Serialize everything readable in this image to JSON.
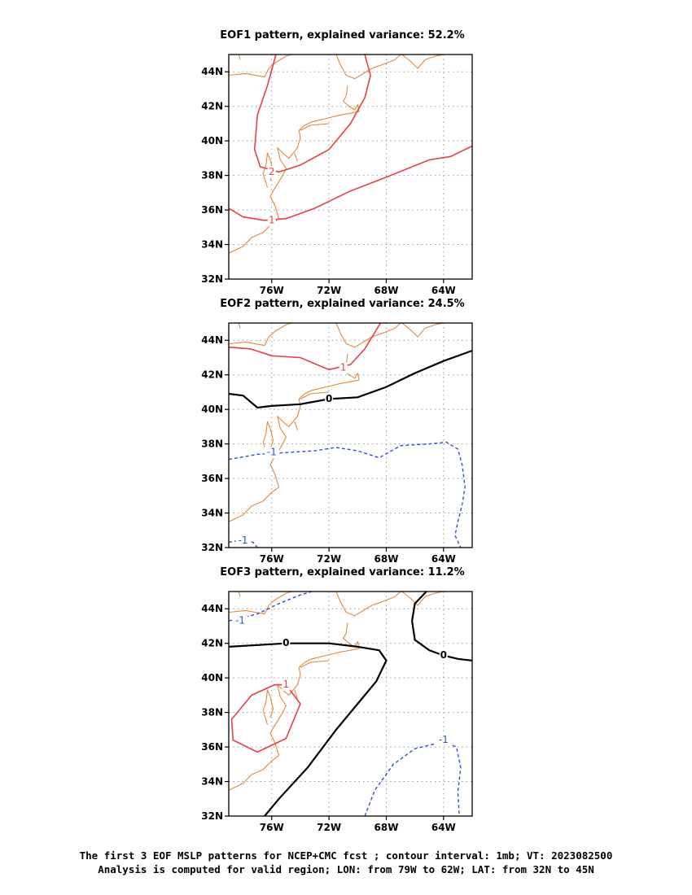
{
  "map": {
    "lon_range": [
      -79,
      -62
    ],
    "lat_range": [
      32,
      45
    ],
    "lon_ticks": [
      {
        "value": -76,
        "label": "76W"
      },
      {
        "value": -72,
        "label": "72W"
      },
      {
        "value": -68,
        "label": "68W"
      },
      {
        "value": -64,
        "label": "64W"
      }
    ],
    "lat_ticks": [
      {
        "value": 44,
        "label": "44N"
      },
      {
        "value": 42,
        "label": "42N"
      },
      {
        "value": 40,
        "label": "40N"
      },
      {
        "value": 38,
        "label": "38N"
      },
      {
        "value": 36,
        "label": "36N"
      },
      {
        "value": 34,
        "label": "34N"
      },
      {
        "value": 32,
        "label": "32N"
      }
    ],
    "colors": {
      "coastline": "#e08a3c",
      "positive": "#e84040",
      "zero": "#000000",
      "negative": "#2d4fe0",
      "grid": "#9a9a9a"
    }
  },
  "panels": [
    {
      "title": "EOF1 pattern, explained variance: 52.2%",
      "contours": [
        {
          "value": 2,
          "label": "2",
          "style": "positive",
          "label_at": [
            -76,
            38.2
          ],
          "points": [
            [
              -75.7,
              45
            ],
            [
              -76.3,
              43.2
            ],
            [
              -77,
              41.5
            ],
            [
              -77.2,
              39.5
            ],
            [
              -76.8,
              38.5
            ],
            [
              -75.5,
              38.2
            ],
            [
              -74,
              38.6
            ],
            [
              -72,
              39.5
            ],
            [
              -70.5,
              41
            ],
            [
              -69.5,
              42.5
            ],
            [
              -69.1,
              43.8
            ],
            [
              -69.5,
              45
            ]
          ]
        },
        {
          "value": 1,
          "label": "1",
          "style": "positive",
          "label_at": [
            -76,
            35.4
          ],
          "points": [
            [
              -79,
              36.1
            ],
            [
              -78,
              35.6
            ],
            [
              -76.5,
              35.4
            ],
            [
              -75,
              35.5
            ],
            [
              -73,
              36.1
            ],
            [
              -70.5,
              37.1
            ],
            [
              -68,
              37.9
            ],
            [
              -65,
              38.9
            ],
            [
              -63.5,
              39.1
            ],
            [
              -62,
              39.7
            ]
          ]
        }
      ]
    },
    {
      "title": "EOF2 pattern, explained variance: 24.5%",
      "contours": [
        {
          "value": 1,
          "label": "1",
          "style": "positive",
          "label_at": [
            -71,
            42.4
          ],
          "points": [
            [
              -79,
              43.6
            ],
            [
              -77.5,
              43.5
            ],
            [
              -76,
              43.1
            ],
            [
              -74,
              43
            ],
            [
              -72,
              42.3
            ],
            [
              -70.5,
              42.6
            ],
            [
              -69.5,
              43.5
            ],
            [
              -68.4,
              45
            ]
          ]
        },
        {
          "value": 0,
          "label": "0",
          "style": "zero",
          "label_at": [
            -72,
            40.6
          ],
          "points": [
            [
              -79,
              40.9
            ],
            [
              -78,
              40.8
            ],
            [
              -77,
              40.1
            ],
            [
              -76,
              40.2
            ],
            [
              -74,
              40.3
            ],
            [
              -72,
              40.6
            ],
            [
              -70,
              40.7
            ],
            [
              -68,
              41.3
            ],
            [
              -66,
              42.1
            ],
            [
              -64,
              42.8
            ],
            [
              -62,
              43.4
            ]
          ]
        },
        {
          "value": -1,
          "label": "-1",
          "style": "negative",
          "label_at": [
            -76,
            37.5
          ],
          "points": [
            [
              -79,
              37.1
            ],
            [
              -77,
              37.4
            ],
            [
              -75,
              37.5
            ],
            [
              -73,
              37.6
            ],
            [
              -71.5,
              37.8
            ],
            [
              -70,
              37.6
            ],
            [
              -68.5,
              37.2
            ],
            [
              -67,
              37.9
            ],
            [
              -65,
              38
            ],
            [
              -63.8,
              38.1
            ],
            [
              -63,
              37.7
            ],
            [
              -62.7,
              36.8
            ],
            [
              -62.5,
              35.5
            ],
            [
              -62.7,
              34.5
            ],
            [
              -63,
              33.5
            ],
            [
              -63.2,
              32.7
            ],
            [
              -62.8,
              32
            ]
          ]
        },
        {
          "value": -1,
          "label": "-1",
          "style": "negative",
          "label_at": [
            -78,
            32.4
          ],
          "points": [
            [
              -79,
              32.3
            ],
            [
              -78.4,
              32.4
            ],
            [
              -77.8,
              32.4
            ],
            [
              -77.3,
              32.3
            ],
            [
              -77,
              32
            ]
          ]
        }
      ]
    },
    {
      "title": "EOF3 pattern, explained variance: 11.2%",
      "contours": [
        {
          "value": -1,
          "label": "-1",
          "style": "negative",
          "label_at": [
            -78.2,
            43.3
          ],
          "points": [
            [
              -79,
              43.3
            ],
            [
              -77,
              43.7
            ],
            [
              -75.5,
              44.3
            ],
            [
              -74,
              44.8
            ],
            [
              -73.2,
              45
            ]
          ]
        },
        {
          "value": 0,
          "label": "0",
          "style": "zero",
          "label_at": [
            -75,
            42
          ],
          "points": [
            [
              -79,
              41.8
            ],
            [
              -77,
              41.9
            ],
            [
              -75,
              42
            ],
            [
              -72,
              42
            ],
            [
              -70,
              41.8
            ],
            [
              -68.5,
              41.6
            ],
            [
              -68,
              41
            ],
            [
              -68.7,
              39.8
            ],
            [
              -70,
              38.5
            ],
            [
              -71.5,
              37
            ],
            [
              -73.5,
              34.8
            ],
            [
              -75.5,
              33
            ],
            [
              -76.5,
              32
            ]
          ]
        },
        {
          "value": 0,
          "label": "0",
          "style": "zero",
          "label_at": [
            -64,
            41.3
          ],
          "points": [
            [
              -65.2,
              45
            ],
            [
              -66,
              44.3
            ],
            [
              -66.2,
              43.3
            ],
            [
              -66,
              42.2
            ],
            [
              -65,
              41.6
            ],
            [
              -64,
              41.3
            ],
            [
              -63,
              41.1
            ],
            [
              -62,
              41
            ]
          ]
        },
        {
          "value": 1,
          "label": "1",
          "style": "positive",
          "label_at": [
            -75,
            39.6
          ],
          "points": [
            [
              -75,
              39.6
            ],
            [
              -74,
              38.5
            ],
            [
              -75,
              36.5
            ],
            [
              -77,
              35.7
            ],
            [
              -78.7,
              36.4
            ],
            [
              -78.8,
              37.6
            ],
            [
              -77.4,
              39
            ],
            [
              -75.8,
              39.6
            ],
            [
              -75,
              39.6
            ]
          ]
        },
        {
          "value": -1,
          "label": "-1",
          "style": "negative",
          "label_at": [
            -64,
            36.4
          ],
          "points": [
            [
              -69.5,
              32
            ],
            [
              -68.8,
              33.5
            ],
            [
              -67.5,
              35
            ],
            [
              -66,
              35.9
            ],
            [
              -64,
              36.3
            ],
            [
              -63.1,
              36
            ],
            [
              -62.8,
              34.8
            ],
            [
              -63,
              33.4
            ],
            [
              -62.9,
              32
            ]
          ]
        }
      ]
    }
  ],
  "caption": {
    "line1": "The first 3 EOF MSLP patterns for NCEP+CMC fcst ; contour interval: 1mb; VT: 2023082500",
    "line2": "Analysis is computed for valid region; LON: from 79W to 62W; LAT: from 32N to 45N"
  }
}
